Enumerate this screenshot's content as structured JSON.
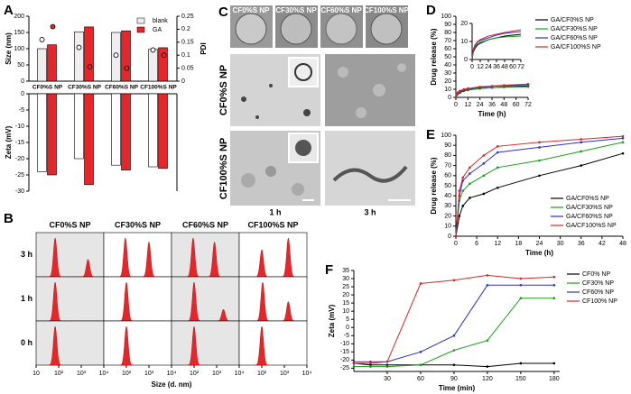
{
  "panel_letters": [
    "A",
    "B",
    "C",
    "D",
    "E",
    "F"
  ],
  "images": {
    "top_labels": [
      "CF0%S NP",
      "CF30%S NP",
      "CF60%S NP",
      "CF100%S NP"
    ],
    "row_labels": [
      "CF0%S NP",
      "CF100%S NP"
    ],
    "time_labels": [
      "1 h",
      "3 h"
    ]
  },
  "chart_data": [
    {
      "type": "bar",
      "categories": [
        "CF0%S NP",
        "CF30%S NP",
        "CF60%S NP",
        "CF100%S NP"
      ],
      "ylabel": "Size (nm)",
      "y2label": "PDI",
      "ylim": [
        0,
        200
      ],
      "yticks": [
        0,
        50,
        100,
        150,
        200
      ],
      "y2lim": [
        0,
        0.25
      ],
      "y2ticks": [
        0,
        0.05,
        0.1,
        0.15,
        0.2,
        0.25
      ],
      "legend": "upper right",
      "series": [
        {
          "name": "blank",
          "color": "#eeeeee",
          "values": [
            100,
            152,
            150,
            98
          ]
        },
        {
          "name": "GA",
          "color": "#e8262a",
          "values": [
            112,
            167,
            155,
            103
          ]
        },
        {
          "color": "#ffffff",
          "axis": "y2",
          "values": [
            0.16,
            0.13,
            0.1,
            0.12
          ]
        },
        {
          "color": "#e8262a",
          "axis": "y2",
          "values": [
            0.21,
            0.055,
            0.05,
            0.1
          ]
        }
      ]
    },
    {
      "type": "bar",
      "ylabel": "Zeta (mV)",
      "ylim": [
        -30,
        0
      ],
      "yticks": [
        -30,
        -25,
        -20,
        -15,
        -10,
        -5,
        0
      ],
      "series": [
        {
          "color": "#ffffff",
          "values": [
            -24,
            -20,
            -22,
            -22.5
          ]
        },
        {
          "color": "#e8262a",
          "values": [
            -25,
            -28,
            -23.5,
            -23
          ]
        }
      ]
    },
    {
      "type": "distribution",
      "xlabel": "Size (d. nm)",
      "xscale": "log",
      "xlim": [
        10,
        10000
      ],
      "xticks": [
        {
          "value": 10,
          "label": "10"
        },
        {
          "value": 100,
          "label": "10²"
        },
        {
          "value": 1000,
          "label": "10³"
        },
        {
          "value": 10000,
          "label": "10⁴"
        }
      ],
      "color": "#e8262a",
      "columns": [
        "CF0%S NP",
        "CF30%S NP",
        "CF60%S NP",
        "CF100%S NP"
      ],
      "rows": [
        "3 h",
        "1 h",
        "0 h"
      ],
      "cells": [
        [
          [
            [
              70,
              1
            ],
            [
              2000,
              0.45
            ]
          ],
          [
            [
              90,
              1
            ],
            [
              1000,
              0.9
            ]
          ],
          [
            [
              90,
              1
            ],
            [
              800,
              0.9
            ]
          ],
          [
            [
              100,
              0.7
            ],
            [
              1500,
              1
            ]
          ]
        ],
        [
          [
            [
              70,
              1
            ]
          ],
          [
            [
              100,
              1
            ]
          ],
          [
            [
              100,
              1
            ],
            [
              2000,
              0.3
            ]
          ],
          [
            [
              110,
              1
            ],
            [
              1500,
              0.5
            ]
          ]
        ],
        [
          [
            [
              70,
              1
            ]
          ],
          [
            [
              100,
              1
            ]
          ],
          [
            [
              100,
              1
            ]
          ],
          [
            [
              100,
              1
            ]
          ]
        ]
      ]
    },
    {
      "type": "line",
      "ylabel": "Drug release (%)",
      "xlabel": "Time (h)",
      "x": [
        0,
        1,
        2,
        4,
        8,
        12,
        24,
        36,
        48,
        72
      ],
      "xlim": [
        0,
        72
      ],
      "xticks": [
        0,
        12,
        24,
        36,
        48,
        60,
        72
      ],
      "ylim": [
        0,
        100
      ],
      "yticks": [
        0,
        10,
        20,
        30,
        40,
        50,
        60,
        70,
        80,
        90,
        100
      ],
      "legend": "outside right",
      "inset": {
        "xlim": [
          0,
          72
        ],
        "xticks": [
          0,
          12,
          24,
          36,
          48,
          60,
          72
        ],
        "ylim": [
          0,
          20
        ],
        "yticks": [
          0,
          10,
          20
        ]
      },
      "series": [
        {
          "name": "GA/CF0%S NP",
          "color": "#000000",
          "values": [
            0,
            3,
            4.5,
            6,
            8,
            9,
            11,
            12,
            13,
            14
          ]
        },
        {
          "name": "GA/CF30%S NP",
          "color": "#1a9e1a",
          "values": [
            0,
            3,
            5,
            7,
            8.5,
            9.5,
            11,
            12,
            12.5,
            13
          ]
        },
        {
          "name": "GA/CF60%S NP",
          "color": "#3030c8",
          "values": [
            0,
            3.5,
            5.5,
            7.5,
            9.5,
            10.5,
            12,
            13.5,
            14.5,
            15.5
          ]
        },
        {
          "name": "GA/CF100%S NP",
          "color": "#d62728",
          "values": [
            0,
            4,
            6,
            8,
            10,
            11,
            13,
            14,
            15,
            16.5
          ]
        }
      ]
    },
    {
      "type": "line",
      "ylabel": "Drug release (%)",
      "xlabel": "Time (h)",
      "x": [
        0,
        1,
        2,
        4,
        8,
        12,
        24,
        36,
        48
      ],
      "xlim": [
        0,
        48
      ],
      "xticks": [
        0,
        6,
        12,
        18,
        24,
        30,
        36,
        42,
        48
      ],
      "ylim": [
        0,
        100
      ],
      "yticks": [
        0,
        10,
        20,
        30,
        40,
        50,
        60,
        70,
        80,
        90,
        100
      ],
      "legend": "lower right",
      "series": [
        {
          "name": "GA/CF0%S NP",
          "color": "#000000",
          "values": [
            0,
            20,
            30,
            38,
            42,
            48,
            60,
            70,
            82
          ]
        },
        {
          "name": "GA/CF30%S NP",
          "color": "#1a9e1a",
          "values": [
            0,
            35,
            45,
            52,
            60,
            68,
            75,
            84,
            93
          ]
        },
        {
          "name": "GA/CF60%S NP",
          "color": "#3030c8",
          "values": [
            0,
            40,
            55,
            62,
            72,
            83,
            88,
            93,
            97
          ]
        },
        {
          "name": "GA/CF100%S NP",
          "color": "#d62728",
          "values": [
            0,
            45,
            58,
            68,
            80,
            89,
            93,
            96,
            99
          ]
        }
      ]
    },
    {
      "type": "line",
      "ylabel": "Zeta (mV)",
      "xlabel": "Time (min)",
      "x": [
        0,
        15,
        30,
        60,
        90,
        120,
        150,
        180
      ],
      "xlim": [
        0,
        185
      ],
      "xticks": [
        30,
        60,
        90,
        120,
        150,
        180
      ],
      "ylim": [
        -27,
        35
      ],
      "yticks": [
        -25,
        -20,
        -15,
        -10,
        -5,
        0,
        5,
        10,
        15,
        20,
        25,
        30,
        35
      ],
      "legend": "outside right",
      "series": [
        {
          "name": "CF0% NP",
          "color": "#000000",
          "values": [
            -22,
            -23,
            -23,
            -23,
            -23,
            -24,
            -22,
            -22
          ]
        },
        {
          "name": "CF30% NP",
          "color": "#1a9e1a",
          "values": [
            -24,
            -24,
            -24,
            -23,
            -14,
            -8,
            18,
            18
          ]
        },
        {
          "name": "CF60% NP",
          "color": "#3030c8",
          "values": [
            -21,
            -21,
            -21,
            -15,
            -5,
            26,
            26,
            26
          ]
        },
        {
          "name": "CF100% NP",
          "color": "#d62728",
          "values": [
            -22,
            -22,
            -21,
            27,
            29,
            32,
            30,
            31
          ]
        }
      ]
    }
  ]
}
